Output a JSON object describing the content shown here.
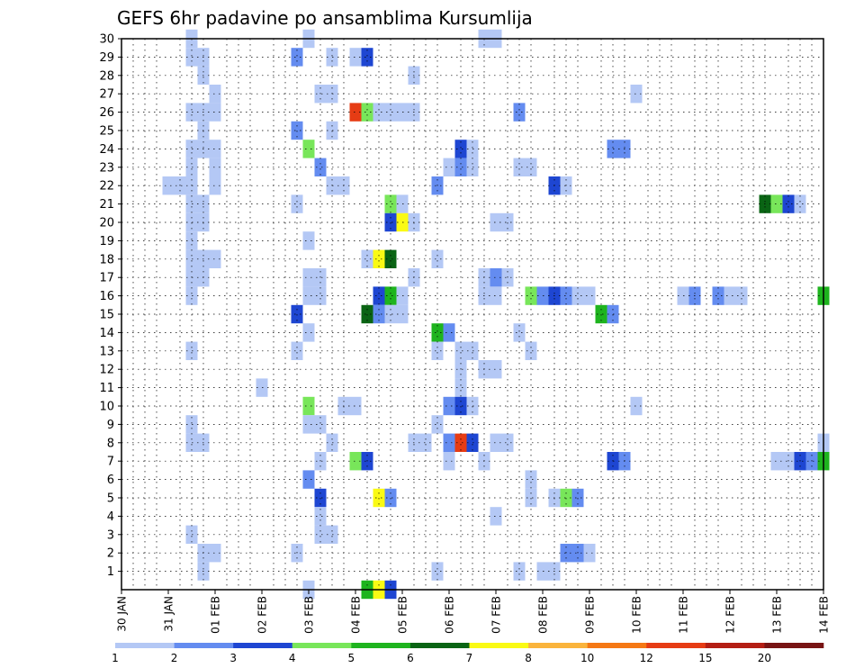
{
  "chart_data": {
    "type": "heatmap",
    "title": "GEFS 6hr padavine po ansamblima Kursumlija",
    "x_tick_labels": [
      "30 JAN",
      "31 JAN",
      "01 FEB",
      "02 FEB",
      "03 FEB",
      "04 FEB",
      "05 FEB",
      "06 FEB",
      "07 FEB",
      "08 FEB",
      "09 FEB",
      "10 FEB",
      "11 FEB",
      "12 FEB",
      "13 FEB",
      "14 FEB"
    ],
    "x_range_steps": [
      0,
      60
    ],
    "y_range": [
      0,
      30
    ],
    "y_ticks": [
      1,
      2,
      3,
      4,
      5,
      6,
      7,
      8,
      9,
      10,
      11,
      12,
      13,
      14,
      15,
      16,
      17,
      18,
      19,
      20,
      21,
      22,
      23,
      24,
      25,
      26,
      27,
      28,
      29,
      30
    ],
    "grid": true,
    "legend": {
      "position": "bottom",
      "labels": [
        "1",
        "2",
        "3",
        "4",
        "5",
        "6",
        "7",
        "8",
        "10",
        "12",
        "15",
        "20"
      ],
      "colors": [
        "#b4c8f5",
        "#648cf0",
        "#1e46d2",
        "#78e65a",
        "#1eb41e",
        "#0a6414",
        "#fafa14",
        "#fab43c",
        "#f57814",
        "#e63c14",
        "#b41e14",
        "#781414"
      ]
    },
    "cells": [
      [
        6,
        30,
        1
      ],
      [
        16,
        30,
        1
      ],
      [
        31,
        30,
        1
      ],
      [
        32,
        30,
        1
      ],
      [
        6,
        29,
        1
      ],
      [
        7,
        29,
        1
      ],
      [
        15,
        29,
        2
      ],
      [
        18,
        29,
        1
      ],
      [
        20,
        29,
        1
      ],
      [
        21,
        29,
        3
      ],
      [
        7,
        28,
        1
      ],
      [
        25,
        28,
        1
      ],
      [
        8,
        27,
        1
      ],
      [
        17,
        27,
        1
      ],
      [
        18,
        27,
        1
      ],
      [
        44,
        27,
        1
      ],
      [
        6,
        26,
        1
      ],
      [
        7,
        26,
        1
      ],
      [
        8,
        26,
        1
      ],
      [
        20,
        26,
        10
      ],
      [
        21,
        26,
        4
      ],
      [
        22,
        26,
        1
      ],
      [
        23,
        26,
        1
      ],
      [
        24,
        26,
        1
      ],
      [
        25,
        26,
        1
      ],
      [
        34,
        26,
        2
      ],
      [
        7,
        25,
        1
      ],
      [
        15,
        25,
        2
      ],
      [
        18,
        25,
        1
      ],
      [
        6,
        24,
        1
      ],
      [
        7,
        24,
        1
      ],
      [
        8,
        24,
        1
      ],
      [
        16,
        24,
        4
      ],
      [
        29,
        24,
        3
      ],
      [
        30,
        24,
        1
      ],
      [
        42,
        24,
        2
      ],
      [
        43,
        24,
        2
      ],
      [
        6,
        23,
        1
      ],
      [
        8,
        23,
        1
      ],
      [
        17,
        23,
        2
      ],
      [
        28,
        23,
        1
      ],
      [
        29,
        23,
        2
      ],
      [
        30,
        23,
        1
      ],
      [
        34,
        23,
        1
      ],
      [
        35,
        23,
        1
      ],
      [
        4,
        22,
        1
      ],
      [
        5,
        22,
        1
      ],
      [
        6,
        22,
        1
      ],
      [
        8,
        22,
        1
      ],
      [
        18,
        22,
        1
      ],
      [
        19,
        22,
        1
      ],
      [
        27,
        22,
        2
      ],
      [
        37,
        22,
        3
      ],
      [
        38,
        22,
        1
      ],
      [
        6,
        21,
        1
      ],
      [
        7,
        21,
        1
      ],
      [
        15,
        21,
        1
      ],
      [
        23,
        21,
        4
      ],
      [
        24,
        21,
        1
      ],
      [
        55,
        21,
        6
      ],
      [
        56,
        21,
        4
      ],
      [
        57,
        21,
        3
      ],
      [
        58,
        21,
        1
      ],
      [
        6,
        20,
        1
      ],
      [
        7,
        20,
        1
      ],
      [
        23,
        20,
        3
      ],
      [
        24,
        20,
        7
      ],
      [
        25,
        20,
        1
      ],
      [
        32,
        20,
        1
      ],
      [
        33,
        20,
        1
      ],
      [
        6,
        19,
        1
      ],
      [
        16,
        19,
        1
      ],
      [
        6,
        18,
        1
      ],
      [
        7,
        18,
        1
      ],
      [
        8,
        18,
        1
      ],
      [
        21,
        18,
        1
      ],
      [
        22,
        18,
        7
      ],
      [
        23,
        18,
        6
      ],
      [
        27,
        18,
        1
      ],
      [
        6,
        17,
        1
      ],
      [
        7,
        17,
        1
      ],
      [
        16,
        17,
        1
      ],
      [
        17,
        17,
        1
      ],
      [
        25,
        17,
        1
      ],
      [
        31,
        17,
        1
      ],
      [
        32,
        17,
        2
      ],
      [
        33,
        17,
        1
      ],
      [
        6,
        16,
        1
      ],
      [
        16,
        16,
        1
      ],
      [
        17,
        16,
        1
      ],
      [
        22,
        16,
        3
      ],
      [
        23,
        16,
        5
      ],
      [
        24,
        16,
        1
      ],
      [
        31,
        16,
        1
      ],
      [
        32,
        16,
        1
      ],
      [
        35,
        16,
        4
      ],
      [
        36,
        16,
        2
      ],
      [
        37,
        16,
        3
      ],
      [
        38,
        16,
        2
      ],
      [
        39,
        16,
        1
      ],
      [
        40,
        16,
        1
      ],
      [
        48,
        16,
        1
      ],
      [
        49,
        16,
        2
      ],
      [
        51,
        16,
        2
      ],
      [
        52,
        16,
        1
      ],
      [
        53,
        16,
        1
      ],
      [
        60,
        16,
        5
      ],
      [
        15,
        15,
        3
      ],
      [
        21,
        15,
        6
      ],
      [
        22,
        15,
        2
      ],
      [
        23,
        15,
        1
      ],
      [
        24,
        15,
        1
      ],
      [
        41,
        15,
        5
      ],
      [
        42,
        15,
        2
      ],
      [
        16,
        14,
        1
      ],
      [
        27,
        14,
        5
      ],
      [
        28,
        14,
        2
      ],
      [
        34,
        14,
        1
      ],
      [
        6,
        13,
        1
      ],
      [
        15,
        13,
        1
      ],
      [
        27,
        13,
        1
      ],
      [
        29,
        13,
        1
      ],
      [
        30,
        13,
        1
      ],
      [
        35,
        13,
        1
      ],
      [
        29,
        12,
        1
      ],
      [
        31,
        12,
        1
      ],
      [
        32,
        12,
        1
      ],
      [
        12,
        11,
        1
      ],
      [
        29,
        11,
        1
      ],
      [
        16,
        10,
        4
      ],
      [
        19,
        10,
        1
      ],
      [
        20,
        10,
        1
      ],
      [
        28,
        10,
        2
      ],
      [
        29,
        10,
        3
      ],
      [
        30,
        10,
        1
      ],
      [
        44,
        10,
        1
      ],
      [
        6,
        9,
        1
      ],
      [
        16,
        9,
        1
      ],
      [
        17,
        9,
        1
      ],
      [
        27,
        9,
        1
      ],
      [
        6,
        8,
        1
      ],
      [
        7,
        8,
        1
      ],
      [
        18,
        8,
        1
      ],
      [
        25,
        8,
        1
      ],
      [
        26,
        8,
        1
      ],
      [
        28,
        8,
        2
      ],
      [
        29,
        8,
        10
      ],
      [
        30,
        8,
        3
      ],
      [
        32,
        8,
        1
      ],
      [
        33,
        8,
        1
      ],
      [
        60,
        8,
        1
      ],
      [
        17,
        7,
        1
      ],
      [
        20,
        7,
        4
      ],
      [
        21,
        7,
        3
      ],
      [
        28,
        7,
        1
      ],
      [
        31,
        7,
        1
      ],
      [
        42,
        7,
        3
      ],
      [
        43,
        7,
        2
      ],
      [
        56,
        7,
        1
      ],
      [
        57,
        7,
        1
      ],
      [
        58,
        7,
        3
      ],
      [
        59,
        7,
        2
      ],
      [
        60,
        7,
        5
      ],
      [
        16,
        6,
        2
      ],
      [
        35,
        6,
        1
      ],
      [
        17,
        5,
        3
      ],
      [
        22,
        5,
        7
      ],
      [
        23,
        5,
        2
      ],
      [
        35,
        5,
        1
      ],
      [
        37,
        5,
        1
      ],
      [
        38,
        5,
        4
      ],
      [
        39,
        5,
        2
      ],
      [
        17,
        4,
        1
      ],
      [
        32,
        4,
        1
      ],
      [
        6,
        3,
        1
      ],
      [
        17,
        3,
        1
      ],
      [
        18,
        3,
        1
      ],
      [
        7,
        2,
        1
      ],
      [
        8,
        2,
        1
      ],
      [
        15,
        2,
        1
      ],
      [
        38,
        2,
        2
      ],
      [
        39,
        2,
        2
      ],
      [
        40,
        2,
        1
      ],
      [
        7,
        1,
        1
      ],
      [
        27,
        1,
        1
      ],
      [
        34,
        1,
        1
      ],
      [
        36,
        1,
        1
      ],
      [
        37,
        1,
        1
      ],
      [
        16,
        0,
        1
      ],
      [
        21,
        0,
        5
      ],
      [
        22,
        0,
        7
      ],
      [
        23,
        0,
        3
      ]
    ]
  }
}
